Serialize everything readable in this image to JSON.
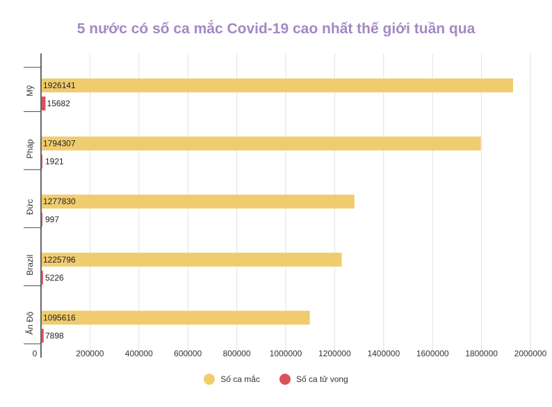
{
  "chart_data": {
    "type": "bar",
    "orientation": "horizontal",
    "title": "5 nước có số ca mắc Covid-19 cao nhất thế giới tuần qua",
    "categories": [
      "Mỹ",
      "Pháp",
      "Đức",
      "Brazil",
      "Ấn Độ"
    ],
    "series": [
      {
        "name": "Số ca mắc",
        "color": "#f0cc6e",
        "values": [
          1926141,
          1794307,
          1277830,
          1225796,
          1095616
        ]
      },
      {
        "name": "Số ca tử vong",
        "color": "#d9525e",
        "values": [
          15682,
          1921,
          997,
          5226,
          7898
        ]
      }
    ],
    "xlim": [
      0,
      2000000
    ],
    "x_ticks": [
      "0",
      "200000",
      "400000",
      "600000",
      "800000",
      "1000000",
      "1200000",
      "1400000",
      "1600000",
      "1800000",
      "2000000"
    ],
    "grid": true,
    "legend_position": "bottom"
  }
}
